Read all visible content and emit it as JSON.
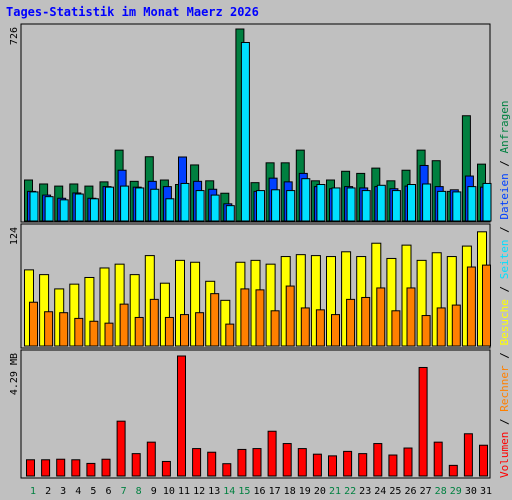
{
  "title": "Tages-Statistik im Monat Maerz 2026",
  "colors": {
    "hits": "#008040",
    "files": "#0040ff",
    "pages": "#00e0ff",
    "visits": "#ffff00",
    "sites": "#ff8000",
    "volume": "#ff0000",
    "title": "#0000ff",
    "weekday_label": "#000000",
    "weekend_label": "#008040",
    "separator": "#000000"
  },
  "chart_data": [
    {
      "type": "bar",
      "panel": "top",
      "ymax_label": "726",
      "ylim": [
        0,
        726
      ],
      "categories": [
        "1",
        "2",
        "3",
        "4",
        "5",
        "6",
        "7",
        "8",
        "9",
        "10",
        "11",
        "12",
        "13",
        "14",
        "15",
        "16",
        "17",
        "18",
        "19",
        "20",
        "21",
        "22",
        "23",
        "24",
        "25",
        "26",
        "27",
        "28",
        "29",
        "30",
        "31"
      ],
      "series": [
        {
          "name": "Anfragen",
          "values": [
            155,
            140,
            132,
            140,
            132,
            148,
            268,
            150,
            243,
            155,
            138,
            212,
            152,
            105,
            726,
            145,
            220,
            220,
            268,
            152,
            155,
            188,
            180,
            200,
            152,
            192,
            268,
            228,
            112,
            398,
            215
          ]
        },
        {
          "name": "Dateien",
          "values": [
            112,
            98,
            86,
            106,
            86,
            130,
            192,
            128,
            150,
            130,
            242,
            150,
            120,
            65,
            0,
            112,
            162,
            148,
            180,
            130,
            122,
            130,
            125,
            130,
            122,
            132,
            210,
            130,
            118,
            170,
            128
          ]
        },
        {
          "name": "Seiten",
          "values": [
            110,
            92,
            80,
            102,
            84,
            128,
            132,
            125,
            120,
            84,
            142,
            115,
            98,
            58,
            675,
            115,
            118,
            115,
            160,
            138,
            125,
            125,
            115,
            135,
            115,
            138,
            140,
            112,
            110,
            130,
            142
          ]
        }
      ]
    },
    {
      "type": "bar",
      "panel": "middle",
      "ymax_label": "124",
      "ylim": [
        0,
        124
      ],
      "categories": [
        "1",
        "2",
        "3",
        "4",
        "5",
        "6",
        "7",
        "8",
        "9",
        "10",
        "11",
        "12",
        "13",
        "14",
        "15",
        "16",
        "17",
        "18",
        "19",
        "20",
        "21",
        "22",
        "23",
        "24",
        "25",
        "26",
        "27",
        "28",
        "29",
        "30",
        "31"
      ],
      "series": [
        {
          "name": "Besuche",
          "values": [
            80,
            75,
            60,
            65,
            72,
            82,
            86,
            75,
            95,
            66,
            90,
            88,
            68,
            48,
            88,
            90,
            86,
            94,
            96,
            95,
            94,
            99,
            94,
            108,
            92,
            106,
            90,
            98,
            94,
            105,
            120
          ]
        },
        {
          "name": "Rechner",
          "values": [
            46,
            36,
            35,
            29,
            26,
            24,
            44,
            30,
            49,
            30,
            33,
            35,
            55,
            23,
            60,
            59,
            37,
            63,
            40,
            38,
            33,
            49,
            51,
            61,
            37,
            61,
            32,
            40,
            43,
            83,
            85
          ]
        }
      ]
    },
    {
      "type": "bar",
      "panel": "bottom",
      "ymax_label": "4.29 MB",
      "ylim": [
        0,
        4.29
      ],
      "categories": [
        "1",
        "2",
        "3",
        "4",
        "5",
        "6",
        "7",
        "8",
        "9",
        "10",
        "11",
        "12",
        "13",
        "14",
        "15",
        "16",
        "17",
        "18",
        "19",
        "20",
        "21",
        "22",
        "23",
        "24",
        "25",
        "26",
        "27",
        "28",
        "29",
        "30",
        "31"
      ],
      "series": [
        {
          "name": "Volumen",
          "values": [
            0.58,
            0.58,
            0.6,
            0.58,
            0.45,
            0.6,
            1.96,
            0.8,
            1.21,
            0.52,
            4.29,
            0.98,
            0.85,
            0.44,
            0.95,
            0.98,
            1.6,
            1.16,
            0.98,
            0.78,
            0.72,
            0.88,
            0.8,
            1.16,
            0.75,
            1.0,
            3.88,
            1.21,
            0.38,
            1.51,
            1.1
          ]
        }
      ]
    }
  ],
  "right_legend": [
    {
      "text": "Volumen",
      "color": "#ff0000"
    },
    {
      "text": " / ",
      "color": "#000000"
    },
    {
      "text": "Rechner",
      "color": "#ff8000"
    },
    {
      "text": " / ",
      "color": "#000000"
    },
    {
      "text": "Besuche",
      "color": "#ffff00"
    },
    {
      "text": " / ",
      "color": "#000000"
    },
    {
      "text": "Seiten",
      "color": "#00e0ff"
    },
    {
      "text": " / ",
      "color": "#000000"
    },
    {
      "text": "Dateien",
      "color": "#0040ff"
    },
    {
      "text": " / ",
      "color": "#000000"
    },
    {
      "text": "Anfragen",
      "color": "#008040"
    }
  ],
  "weekend_days": [
    "1",
    "7",
    "8",
    "14",
    "15",
    "21",
    "22",
    "28",
    "29"
  ]
}
